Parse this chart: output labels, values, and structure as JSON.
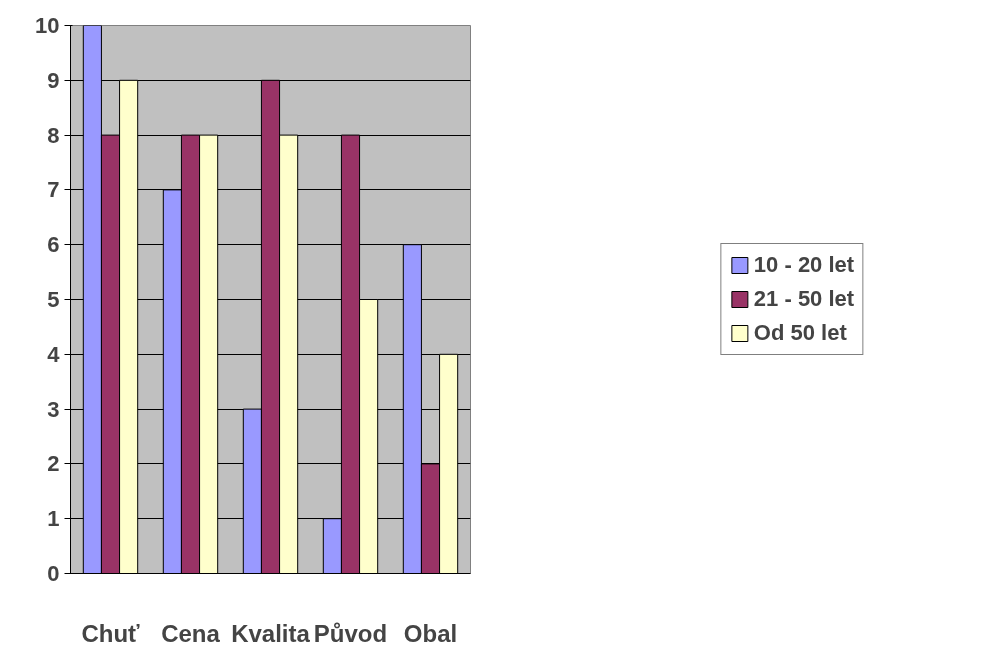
{
  "chart_data": {
    "type": "bar",
    "categories": [
      "Chuť",
      "Cena",
      "Kvalita",
      "Původ",
      "Obal"
    ],
    "series": [
      {
        "name": "10 - 20 let",
        "color": "#9999ff",
        "values": [
          10,
          7,
          3,
          1,
          6
        ]
      },
      {
        "name": "21 - 50 let",
        "color": "#993366",
        "values": [
          8,
          8,
          9,
          8,
          2
        ]
      },
      {
        "name": "Od 50 let",
        "color": "#ffffcc",
        "values": [
          9,
          8,
          8,
          5,
          4
        ]
      }
    ],
    "ylim": [
      0,
      10
    ],
    "yticks": [
      0,
      1,
      2,
      3,
      4,
      5,
      6,
      7,
      8,
      9,
      10
    ],
    "grid": "y",
    "legend": "right"
  }
}
